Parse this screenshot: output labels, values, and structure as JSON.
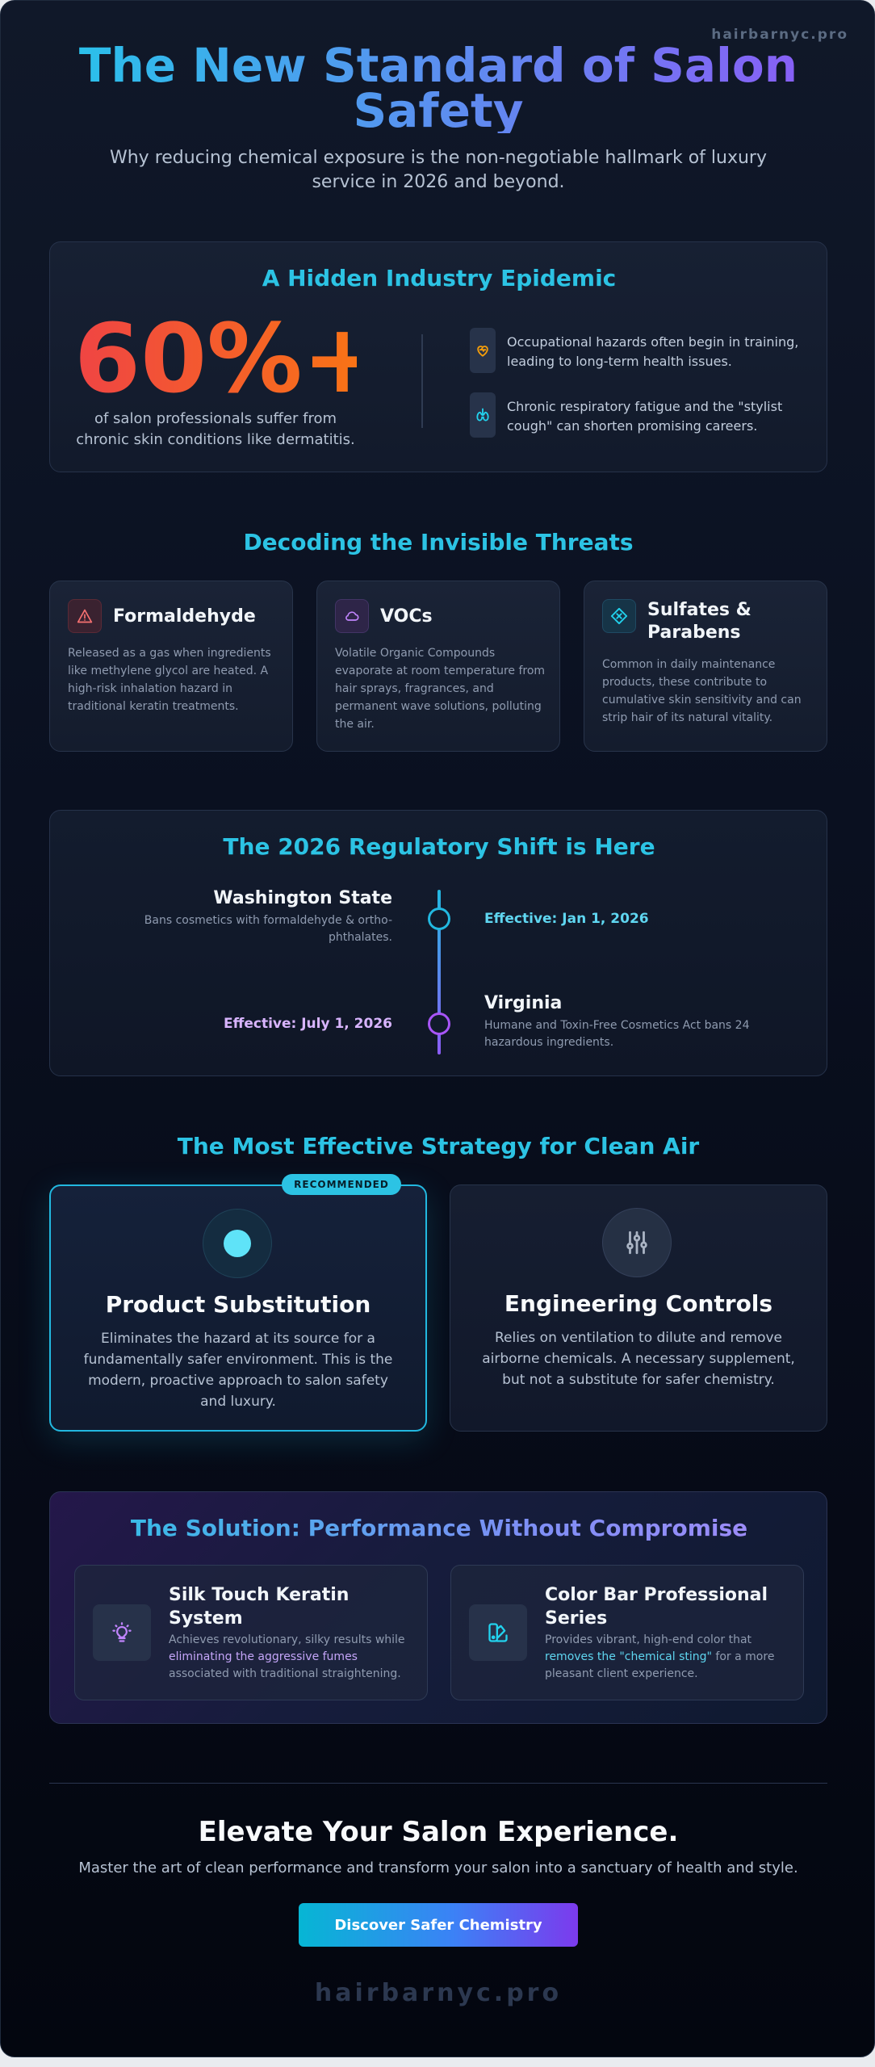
{
  "brand": "hairbarnyc.pro",
  "hero": {
    "title": "The New Standard of Salon Safety",
    "subtitle": "Why reducing chemical exposure is the non-negotiable hallmark of luxury service in 2026 and beyond."
  },
  "epidemic": {
    "title": "A Hidden Industry Epidemic",
    "stat": "60%+",
    "stat_desc": "of salon professionals suffer from chronic skin conditions like dermatitis.",
    "items": [
      {
        "icon": "heart-icon",
        "text": "Occupational hazards often begin in training, leading to long-term health issues."
      },
      {
        "icon": "lungs-icon",
        "text": "Chronic respiratory fatigue and the \"stylist cough\" can shorten promising careers."
      }
    ]
  },
  "threats": {
    "title": "Decoding the Invisible Threats",
    "cards": [
      {
        "icon": "warning-icon",
        "name": "Formaldehyde",
        "desc": "Released as a gas when ingredients like methylene glycol are heated. A high-risk inhalation hazard in traditional keratin treatments."
      },
      {
        "icon": "cloud-icon",
        "name": "VOCs",
        "desc": "Volatile Organic Compounds evaporate at room temperature from hair sprays, fragrances, and permanent wave solutions, polluting the air."
      },
      {
        "icon": "diamond-x-icon",
        "name": "Sulfates & Parabens",
        "desc": "Common in daily maintenance products, these contribute to cumulative skin sensitivity and can strip hair of its natural vitality."
      }
    ]
  },
  "regulatory": {
    "title": "The 2026 Regulatory Shift is Here",
    "events": [
      {
        "state": "Washington State",
        "desc": "Bans cosmetics with formaldehyde & ortho-phthalates.",
        "effective": "Effective: Jan 1, 2026"
      },
      {
        "state": "Virginia",
        "desc": "Humane and Toxin-Free Cosmetics Act bans 24 hazardous ingredients.",
        "effective": "Effective: July 1, 2026"
      }
    ]
  },
  "strategy": {
    "title": "The Most Effective Strategy for Clean Air",
    "badge": "RECOMMENDED",
    "cards": [
      {
        "icon": "circle-icon",
        "name": "Product Substitution",
        "desc": "Eliminates the hazard at its source for a fundamentally safer environment. This is the modern, proactive approach to salon safety and luxury."
      },
      {
        "icon": "sliders-icon",
        "name": "Engineering Controls",
        "desc": "Relies on ventilation to dilute and remove airborne chemicals. A necessary supplement, but not a substitute for safer chemistry."
      }
    ]
  },
  "solution": {
    "title": "The Solution: Performance Without Compromise",
    "cards": [
      {
        "icon": "lightbulb-icon",
        "name": "Silk Touch Keratin System",
        "desc_pre": "Achieves revolutionary, silky results while ",
        "desc_hl": "eliminating the aggressive fumes",
        "desc_post": " associated with traditional straightening."
      },
      {
        "icon": "swatch-icon",
        "name": "Color Bar Professional Series",
        "desc_pre": "Provides vibrant, high-end color that ",
        "desc_hl": "removes the \"chemical sting\"",
        "desc_post": " for a more pleasant client experience."
      }
    ]
  },
  "cta": {
    "title": "Elevate Your Salon Experience.",
    "subtitle": "Master the art of clean performance and transform your salon into a sanctuary of health and style.",
    "button": "Discover Safer Chemistry"
  },
  "colors": {
    "accent_cyan": "#2cc3e4",
    "accent_purple": "#8b5cf6",
    "stat_orange": "#f97316",
    "background": "#0a1020"
  }
}
